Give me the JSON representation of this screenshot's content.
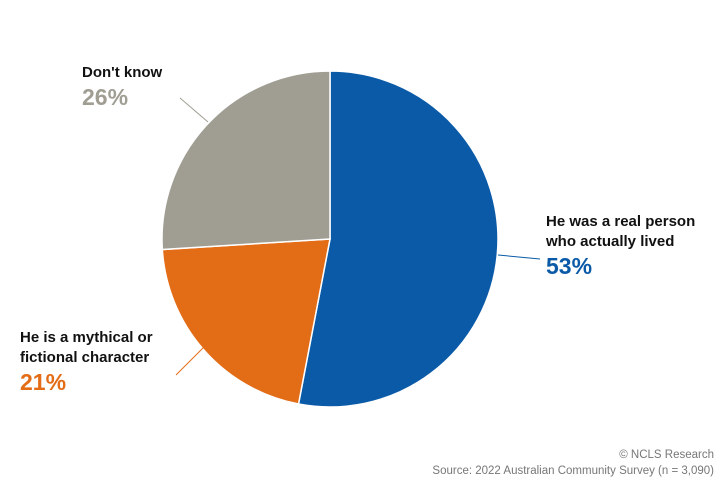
{
  "chart_data": {
    "type": "pie",
    "categories": [
      "He was a real person who actually lived",
      "He is a mythical or fictional character",
      "Don't know"
    ],
    "values": [
      53,
      21,
      26
    ],
    "value_labels": [
      "53%",
      "21%",
      "26%"
    ],
    "colors": [
      "#0a5aa8",
      "#e36c17",
      "#a09e93"
    ],
    "credit": "© NCLS Research",
    "source": "Source: 2022 Australian Community Survey (n = 3,090)"
  }
}
